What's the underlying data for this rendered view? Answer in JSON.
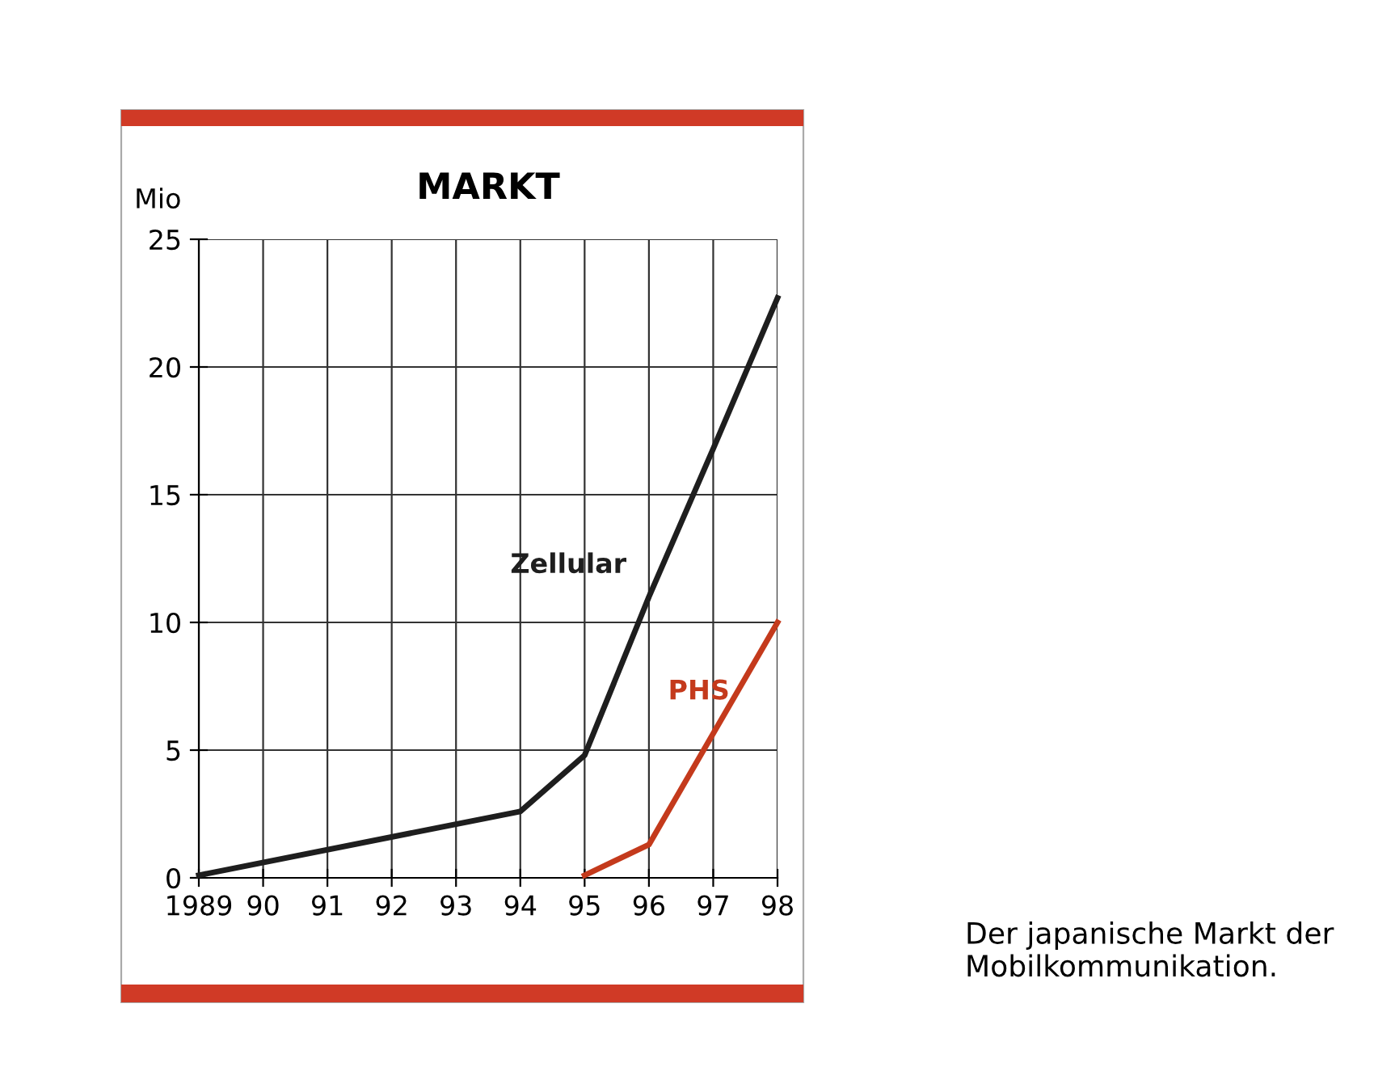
{
  "chart_data": {
    "type": "line",
    "title": "MARKT",
    "ylabel": "Mio",
    "series": [
      {
        "name": "Zellular",
        "color": "#1e1e1e",
        "x": [
          1989,
          1994,
          1995,
          1996,
          1997,
          1998
        ],
        "values": [
          0.1,
          2.6,
          4.8,
          11,
          16.8,
          22.7
        ]
      },
      {
        "name": "PHS",
        "color": "#c43a1c",
        "x": [
          1995,
          1996,
          1998
        ],
        "values": [
          0.1,
          1.3,
          10
        ]
      }
    ],
    "xlim": [
      1989,
      1998
    ],
    "xticks": [
      {
        "value": 1989,
        "label": "1989"
      },
      {
        "value": 1990,
        "label": "90"
      },
      {
        "value": 1991,
        "label": "91"
      },
      {
        "value": 1992,
        "label": "92"
      },
      {
        "value": 1993,
        "label": "93"
      },
      {
        "value": 1994,
        "label": "94"
      },
      {
        "value": 1995,
        "label": "95"
      },
      {
        "value": 1996,
        "label": "96"
      },
      {
        "value": 1997,
        "label": "97"
      },
      {
        "value": 1998,
        "label": "98"
      }
    ],
    "ylim": [
      0,
      25
    ],
    "yticks": [
      0,
      5,
      10,
      15,
      20,
      25
    ],
    "grid": true,
    "legend": false,
    "marker": "none",
    "line_style": "solid",
    "annotations": [
      "Der japanische Markt der Mobilkommunikation."
    ]
  }
}
